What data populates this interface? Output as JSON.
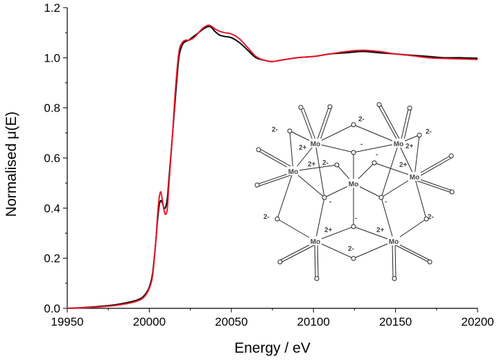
{
  "chart_data": {
    "type": "line",
    "xlabel": "Energy / eV",
    "ylabel": "Normalised μ(E)",
    "xlim": [
      19950,
      20200
    ],
    "ylim": [
      0.0,
      1.2
    ],
    "xticks": [
      19950,
      20000,
      20050,
      20100,
      20150,
      20200
    ],
    "xtick_labels": [
      "19950",
      "20000",
      "20050",
      "20100",
      "20150",
      "20200"
    ],
    "yticks": [
      0.0,
      0.2,
      0.4,
      0.6,
      0.8,
      1.0,
      1.2
    ],
    "ytick_labels": [
      "0.0",
      "0.2",
      "0.4",
      "0.6",
      "0.8",
      "1.0",
      "1.2"
    ],
    "grid": false,
    "series": [
      {
        "color": "#000000",
        "x": [
          19950,
          19960,
          19970,
          19980,
          19990,
          19995,
          19998,
          20000,
          20002,
          20004,
          20005,
          20006,
          20007,
          20008,
          20009,
          20010,
          20011,
          20012,
          20014,
          20016,
          20018,
          20020,
          20022,
          20024,
          20026,
          20028,
          20030,
          20033,
          20036,
          20038,
          20040,
          20043,
          20046,
          20050,
          20055,
          20060,
          20065,
          20070,
          20075,
          20080,
          20090,
          20100,
          20110,
          20120,
          20130,
          20140,
          20150,
          20160,
          20170,
          20180,
          20190,
          20200
        ],
        "y": [
          0.0,
          0.003,
          0.008,
          0.015,
          0.028,
          0.04,
          0.06,
          0.085,
          0.14,
          0.27,
          0.35,
          0.41,
          0.43,
          0.42,
          0.4,
          0.405,
          0.44,
          0.52,
          0.68,
          0.85,
          1.0,
          1.05,
          1.065,
          1.07,
          1.08,
          1.09,
          1.1,
          1.115,
          1.125,
          1.12,
          1.105,
          1.09,
          1.085,
          1.08,
          1.06,
          1.03,
          1.0,
          0.99,
          0.985,
          0.99,
          1.0,
          1.005,
          1.015,
          1.02,
          1.025,
          1.02,
          1.015,
          1.01,
          1.005,
          1.0,
          1.0,
          0.998
        ]
      },
      {
        "color": "#e8182c",
        "x": [
          19950,
          19960,
          19970,
          19980,
          19990,
          19995,
          19998,
          20000,
          20002,
          20004,
          20005,
          20006,
          20007,
          20008,
          20009,
          20010,
          20011,
          20012,
          20014,
          20016,
          20018,
          20020,
          20022,
          20024,
          20026,
          20028,
          20030,
          20033,
          20036,
          20038,
          20040,
          20043,
          20046,
          20050,
          20055,
          20060,
          20065,
          20070,
          20075,
          20080,
          20090,
          20100,
          20110,
          20120,
          20130,
          20140,
          20150,
          20160,
          20170,
          20180,
          20190,
          20200
        ],
        "y": [
          0.0,
          0.002,
          0.006,
          0.012,
          0.024,
          0.036,
          0.055,
          0.08,
          0.13,
          0.27,
          0.37,
          0.44,
          0.465,
          0.43,
          0.39,
          0.375,
          0.4,
          0.5,
          0.68,
          0.88,
          1.02,
          1.06,
          1.07,
          1.07,
          1.075,
          1.085,
          1.1,
          1.12,
          1.13,
          1.125,
          1.115,
          1.105,
          1.1,
          1.095,
          1.075,
          1.04,
          1.005,
          0.99,
          0.985,
          0.99,
          1.0,
          1.005,
          1.015,
          1.025,
          1.03,
          1.025,
          1.015,
          1.008,
          1.0,
          0.997,
          0.995,
          0.993
        ]
      }
    ]
  },
  "inset": {
    "mo": "Mo",
    "oxygen": "o",
    "minus": "-",
    "two_minus": "2-",
    "two_plus": "2+"
  }
}
